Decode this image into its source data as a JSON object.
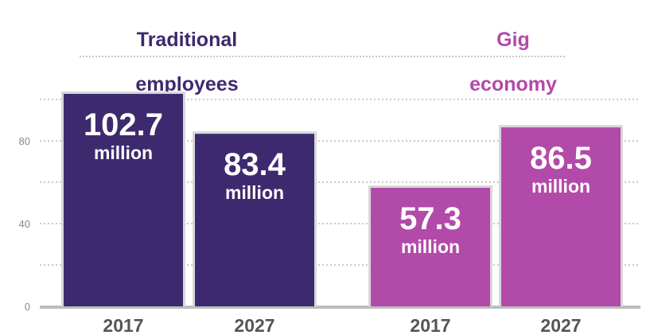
{
  "colors": {
    "traditional": "#3d2a6e",
    "gig": "#b24aa9",
    "grid": "#c9c9c9",
    "axis_text": "#555555"
  },
  "groups": {
    "traditional": {
      "title_line1": "Traditional",
      "title_line2": "employees"
    },
    "gig": {
      "title_line1": "Gig",
      "title_line2": "economy"
    }
  },
  "chart_data": {
    "type": "bar",
    "ylim": [
      0,
      120
    ],
    "yticks": [
      0,
      40,
      80
    ],
    "unit": "million",
    "bars": [
      {
        "group": "traditional",
        "year": "2017",
        "value": 102.7,
        "value_label": "102.7",
        "unit_label": "million"
      },
      {
        "group": "traditional",
        "year": "2027",
        "value": 83.4,
        "value_label": "83.4",
        "unit_label": "million"
      },
      {
        "group": "gig",
        "year": "2017",
        "value": 57.3,
        "value_label": "57.3",
        "unit_label": "million"
      },
      {
        "group": "gig",
        "year": "2027",
        "value": 86.5,
        "value_label": "86.5",
        "unit_label": "million"
      }
    ]
  }
}
